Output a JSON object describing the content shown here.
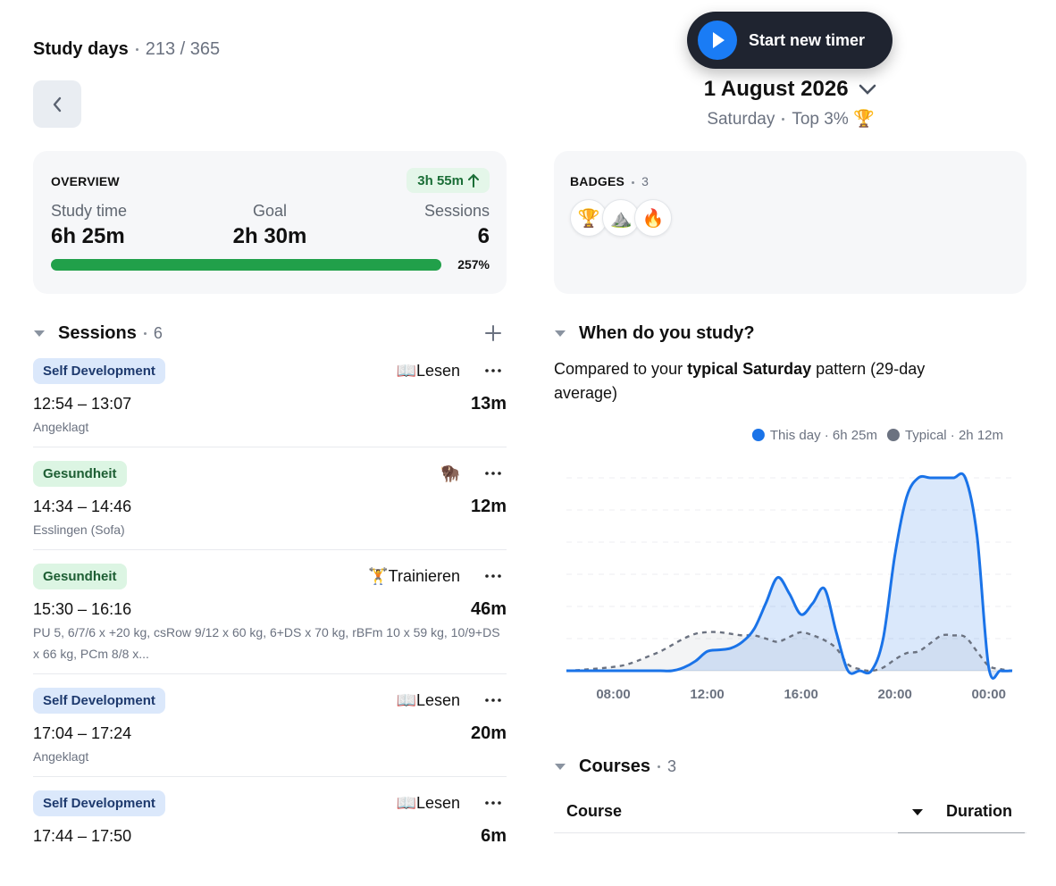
{
  "header": {
    "title": "Study days",
    "progress": "213 / 365",
    "timer_button": "Start new timer",
    "date": "1 August 2026",
    "weekday": "Saturday",
    "rank": "Top 3% 🏆"
  },
  "overview": {
    "title": "OVERVIEW",
    "delta": "3h 55m",
    "stats": [
      {
        "label": "Study time",
        "value": "6h 25m"
      },
      {
        "label": "Goal",
        "value": "2h 30m"
      },
      {
        "label": "Sessions",
        "value": "6"
      }
    ],
    "percent": "257%"
  },
  "badges": {
    "title": "BADGES",
    "count": "3",
    "icons": [
      "🏆",
      "⛰️",
      "🔥"
    ]
  },
  "sessions": {
    "title": "Sessions",
    "count": "6",
    "items": [
      {
        "tag": "Self Development",
        "tag_color": "blue",
        "activity": "📖Lesen",
        "time": "12:54 – 13:07",
        "duration": "13m",
        "note": "Angeklagt"
      },
      {
        "tag": "Gesundheit",
        "tag_color": "green",
        "activity": "🦬",
        "time": "14:34 – 14:46",
        "duration": "12m",
        "note": "Esslingen (Sofa)"
      },
      {
        "tag": "Gesundheit",
        "tag_color": "green",
        "activity": "🏋️Trainieren",
        "time": "15:30 – 16:16",
        "duration": "46m",
        "note": "PU 5, 6/7/6 x +20 kg, csRow 9/12 x 60 kg, 6+DS x 70 kg, rBFm 10 x 59 kg, 10/9+DS x 66 kg, PCm 8/8 x..."
      },
      {
        "tag": "Self Development",
        "tag_color": "blue",
        "activity": "📖Lesen",
        "time": "17:04 – 17:24",
        "duration": "20m",
        "note": "Angeklagt"
      },
      {
        "tag": "Self Development",
        "tag_color": "blue",
        "activity": "📖Lesen",
        "time": "17:44 – 17:50",
        "duration": "6m"
      }
    ]
  },
  "study": {
    "title": "When do you study?",
    "intro": "Compared to your ",
    "emphasis": "typical Saturday",
    "rest": " pattern (29-day average)"
  },
  "chart_data": {
    "type": "line",
    "x": [
      6,
      6.5,
      7,
      7.5,
      8,
      8.5,
      9,
      9.5,
      10,
      10.5,
      11,
      11.5,
      12,
      12.5,
      13,
      13.5,
      14,
      14.5,
      15,
      15.5,
      16,
      16.5,
      17,
      17.5,
      18,
      18.5,
      19,
      19.5,
      20,
      20.5,
      21,
      21.5,
      22,
      22.5,
      23,
      23.5,
      24,
      24.5,
      25
    ],
    "series": [
      {
        "name": "This day · 6h 25m",
        "color": "#1a73e8",
        "style": "solid",
        "values": [
          0,
          0,
          0,
          0,
          0,
          0,
          0,
          0,
          0,
          0,
          0.1,
          0.3,
          0.6,
          0.65,
          0.7,
          0.9,
          1.3,
          2.1,
          2.9,
          2.4,
          1.75,
          2.1,
          2.55,
          1.2,
          0,
          0,
          0,
          1.0,
          3.6,
          5.4,
          6,
          6,
          6,
          6,
          6,
          4.2,
          0.1,
          0,
          0
        ]
      },
      {
        "name": "Typical · 2h 12m",
        "color": "#6b7280",
        "style": "dashed",
        "values": [
          0,
          0.02,
          0.05,
          0.08,
          0.12,
          0.18,
          0.3,
          0.45,
          0.6,
          0.8,
          1.0,
          1.15,
          1.2,
          1.2,
          1.15,
          1.1,
          1.1,
          1.0,
          0.9,
          1.05,
          1.2,
          1.1,
          0.95,
          0.7,
          0.2,
          0.05,
          0,
          0.1,
          0.35,
          0.55,
          0.6,
          0.85,
          1.1,
          1.1,
          1.05,
          0.6,
          0.15,
          0.05,
          0
        ]
      }
    ],
    "xlim": [
      6,
      25
    ],
    "xticks": [
      {
        "value": 8,
        "label": "08:00"
      },
      {
        "value": 12,
        "label": "12:00"
      },
      {
        "value": 16,
        "label": "16:00"
      },
      {
        "value": 20,
        "label": "20:00"
      },
      {
        "value": 24,
        "label": "00:00"
      }
    ],
    "ylim": [
      0,
      6
    ],
    "yticks": [
      0,
      1,
      2,
      3,
      4,
      5,
      6
    ],
    "show_ytick_labels": false,
    "grid": true,
    "legend": "top-right"
  },
  "courses": {
    "title": "Courses",
    "count": "3",
    "columns": [
      "Course",
      "Duration"
    ]
  }
}
